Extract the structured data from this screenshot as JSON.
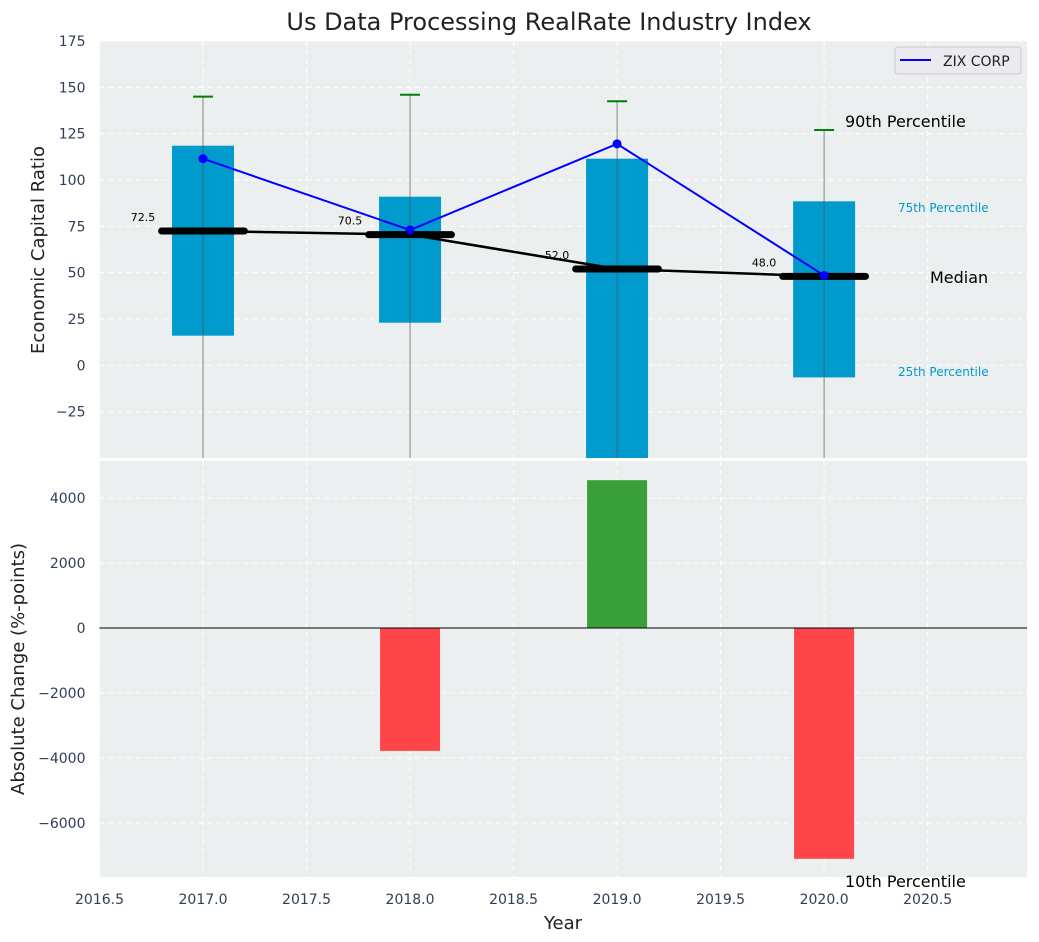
{
  "chart_data": [
    {
      "type": "bar",
      "title": "Us Data Processing RealRate Industry Index",
      "xlabel": "",
      "ylabel": "Economic Capital Ratio",
      "xlim": [
        2016.5,
        2020.98
      ],
      "ylim": [
        -50,
        175
      ],
      "yticks": [
        -25,
        0,
        25,
        50,
        75,
        100,
        125,
        150,
        175
      ],
      "yticklabels": [
        "−25",
        "0",
        "25",
        "50",
        "75",
        "100",
        "125",
        "150",
        "175"
      ],
      "grid": true,
      "years": [
        2017,
        2018,
        2019,
        2020
      ],
      "p25": [
        16,
        23,
        -60,
        -6.5
      ],
      "p75": [
        118.5,
        91,
        111.5,
        88.5
      ],
      "p90": [
        145,
        146,
        142.5,
        127
      ],
      "p10": [
        -60,
        -60,
        -60,
        -60
      ],
      "median": [
        72.5,
        70.5,
        52.0,
        48.0
      ],
      "median_labels": [
        "72.5",
        "70.5",
        "52.0",
        "48.0"
      ],
      "series": [
        {
          "name": "ZIX CORP",
          "values": [
            111.5,
            73,
            119.5,
            48.5
          ]
        }
      ],
      "legend": {
        "placement": "top-right",
        "entries": [
          "ZIX CORP"
        ]
      },
      "annotations": {
        "p90": "90th Percentile",
        "p75": "75th Percentile",
        "median": "Median",
        "p25": "25th Percentile",
        "p10": "10th Percentile"
      },
      "colors": {
        "box": "#009ACD",
        "line": "#0000FF",
        "median": "#000000",
        "cap": "#008000",
        "bg": "#EBEFEF",
        "tick": "#2E4057"
      }
    },
    {
      "type": "bar",
      "xlabel": "Year",
      "ylabel": "Absolute Change (%-points)",
      "xlim": [
        2016.5,
        2020.98
      ],
      "ylim": [
        -7660,
        5140
      ],
      "yticks": [
        -6000,
        -4000,
        -2000,
        0,
        2000,
        4000
      ],
      "yticklabels": [
        "−6000",
        "−4000",
        "−2000",
        "0",
        "2000",
        "4000"
      ],
      "xticks": [
        2016.5,
        2017.0,
        2017.5,
        2018.0,
        2018.5,
        2019.0,
        2019.5,
        2020.0,
        2020.5
      ],
      "xticklabels": [
        "2016.5",
        "2017.0",
        "2017.5",
        "2018.0",
        "2018.5",
        "2019.0",
        "2019.5",
        "2020.0",
        "2020.5"
      ],
      "categories": [
        2018,
        2019,
        2020
      ],
      "values": [
        -3780,
        4550,
        -7100
      ],
      "colors": {
        "positive": "#2E9A2E",
        "negative": "#FF3B3F"
      }
    }
  ]
}
